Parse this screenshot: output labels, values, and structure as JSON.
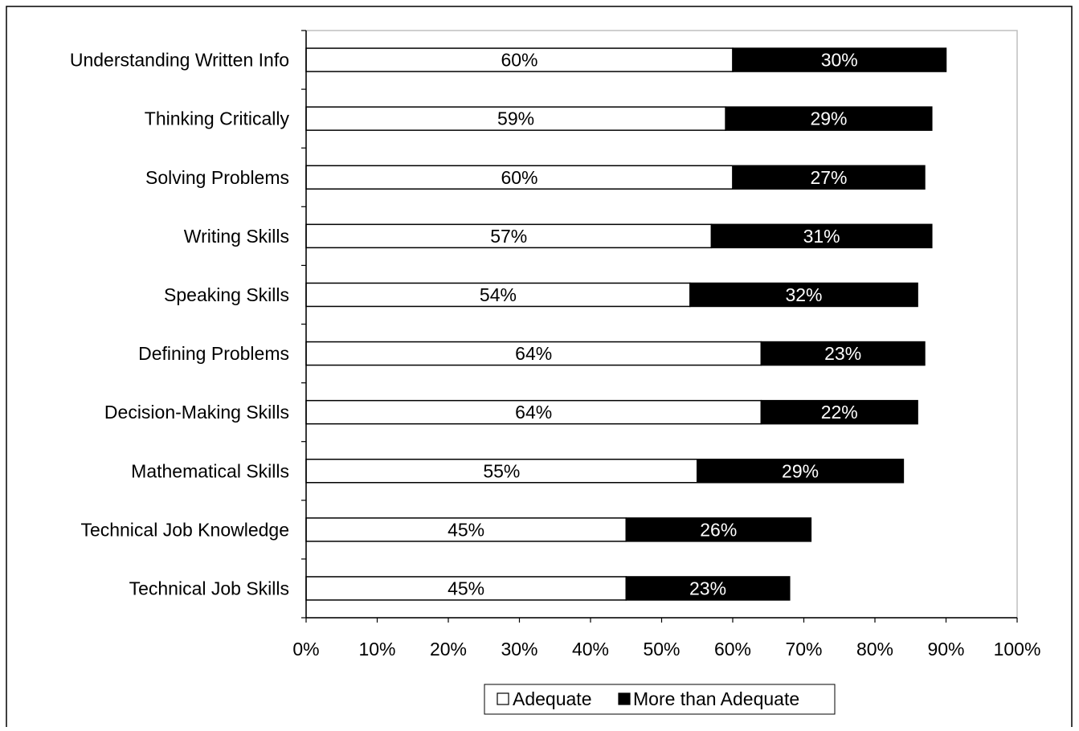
{
  "chart_data": {
    "type": "bar",
    "orientation": "horizontal",
    "stacked": true,
    "categories": [
      "Understanding Written Info",
      "Thinking Critically",
      "Solving Problems",
      "Writing Skills",
      "Speaking Skills",
      "Defining Problems",
      "Decision-Making Skills",
      "Mathematical Skills",
      "Technical Job Knowledge",
      "Technical Job Skills"
    ],
    "series": [
      {
        "name": "Adequate",
        "color": "#ffffff",
        "label_color": "#000000",
        "values": [
          60,
          59,
          60,
          57,
          54,
          64,
          64,
          55,
          45,
          45
        ],
        "labels": [
          "60%",
          "59%",
          "60%",
          "57%",
          "54%",
          "64%",
          "64%",
          "55%",
          "45%",
          "45%"
        ]
      },
      {
        "name": "More than Adequate",
        "color": "#000000",
        "label_color": "#ffffff",
        "values": [
          30,
          29,
          27,
          31,
          32,
          23,
          22,
          29,
          26,
          23
        ],
        "labels": [
          "30%",
          "29%",
          "27%",
          "31%",
          "32%",
          "23%",
          "22%",
          "29%",
          "26%",
          "23%"
        ]
      }
    ],
    "xlim": [
      0,
      100
    ],
    "xticks": [
      0,
      10,
      20,
      30,
      40,
      50,
      60,
      70,
      80,
      90,
      100
    ],
    "xtick_labels": [
      "0%",
      "10%",
      "20%",
      "30%",
      "40%",
      "50%",
      "60%",
      "70%",
      "80%",
      "90%",
      "100%"
    ],
    "grid": false,
    "legend_position": "bottom-center"
  }
}
